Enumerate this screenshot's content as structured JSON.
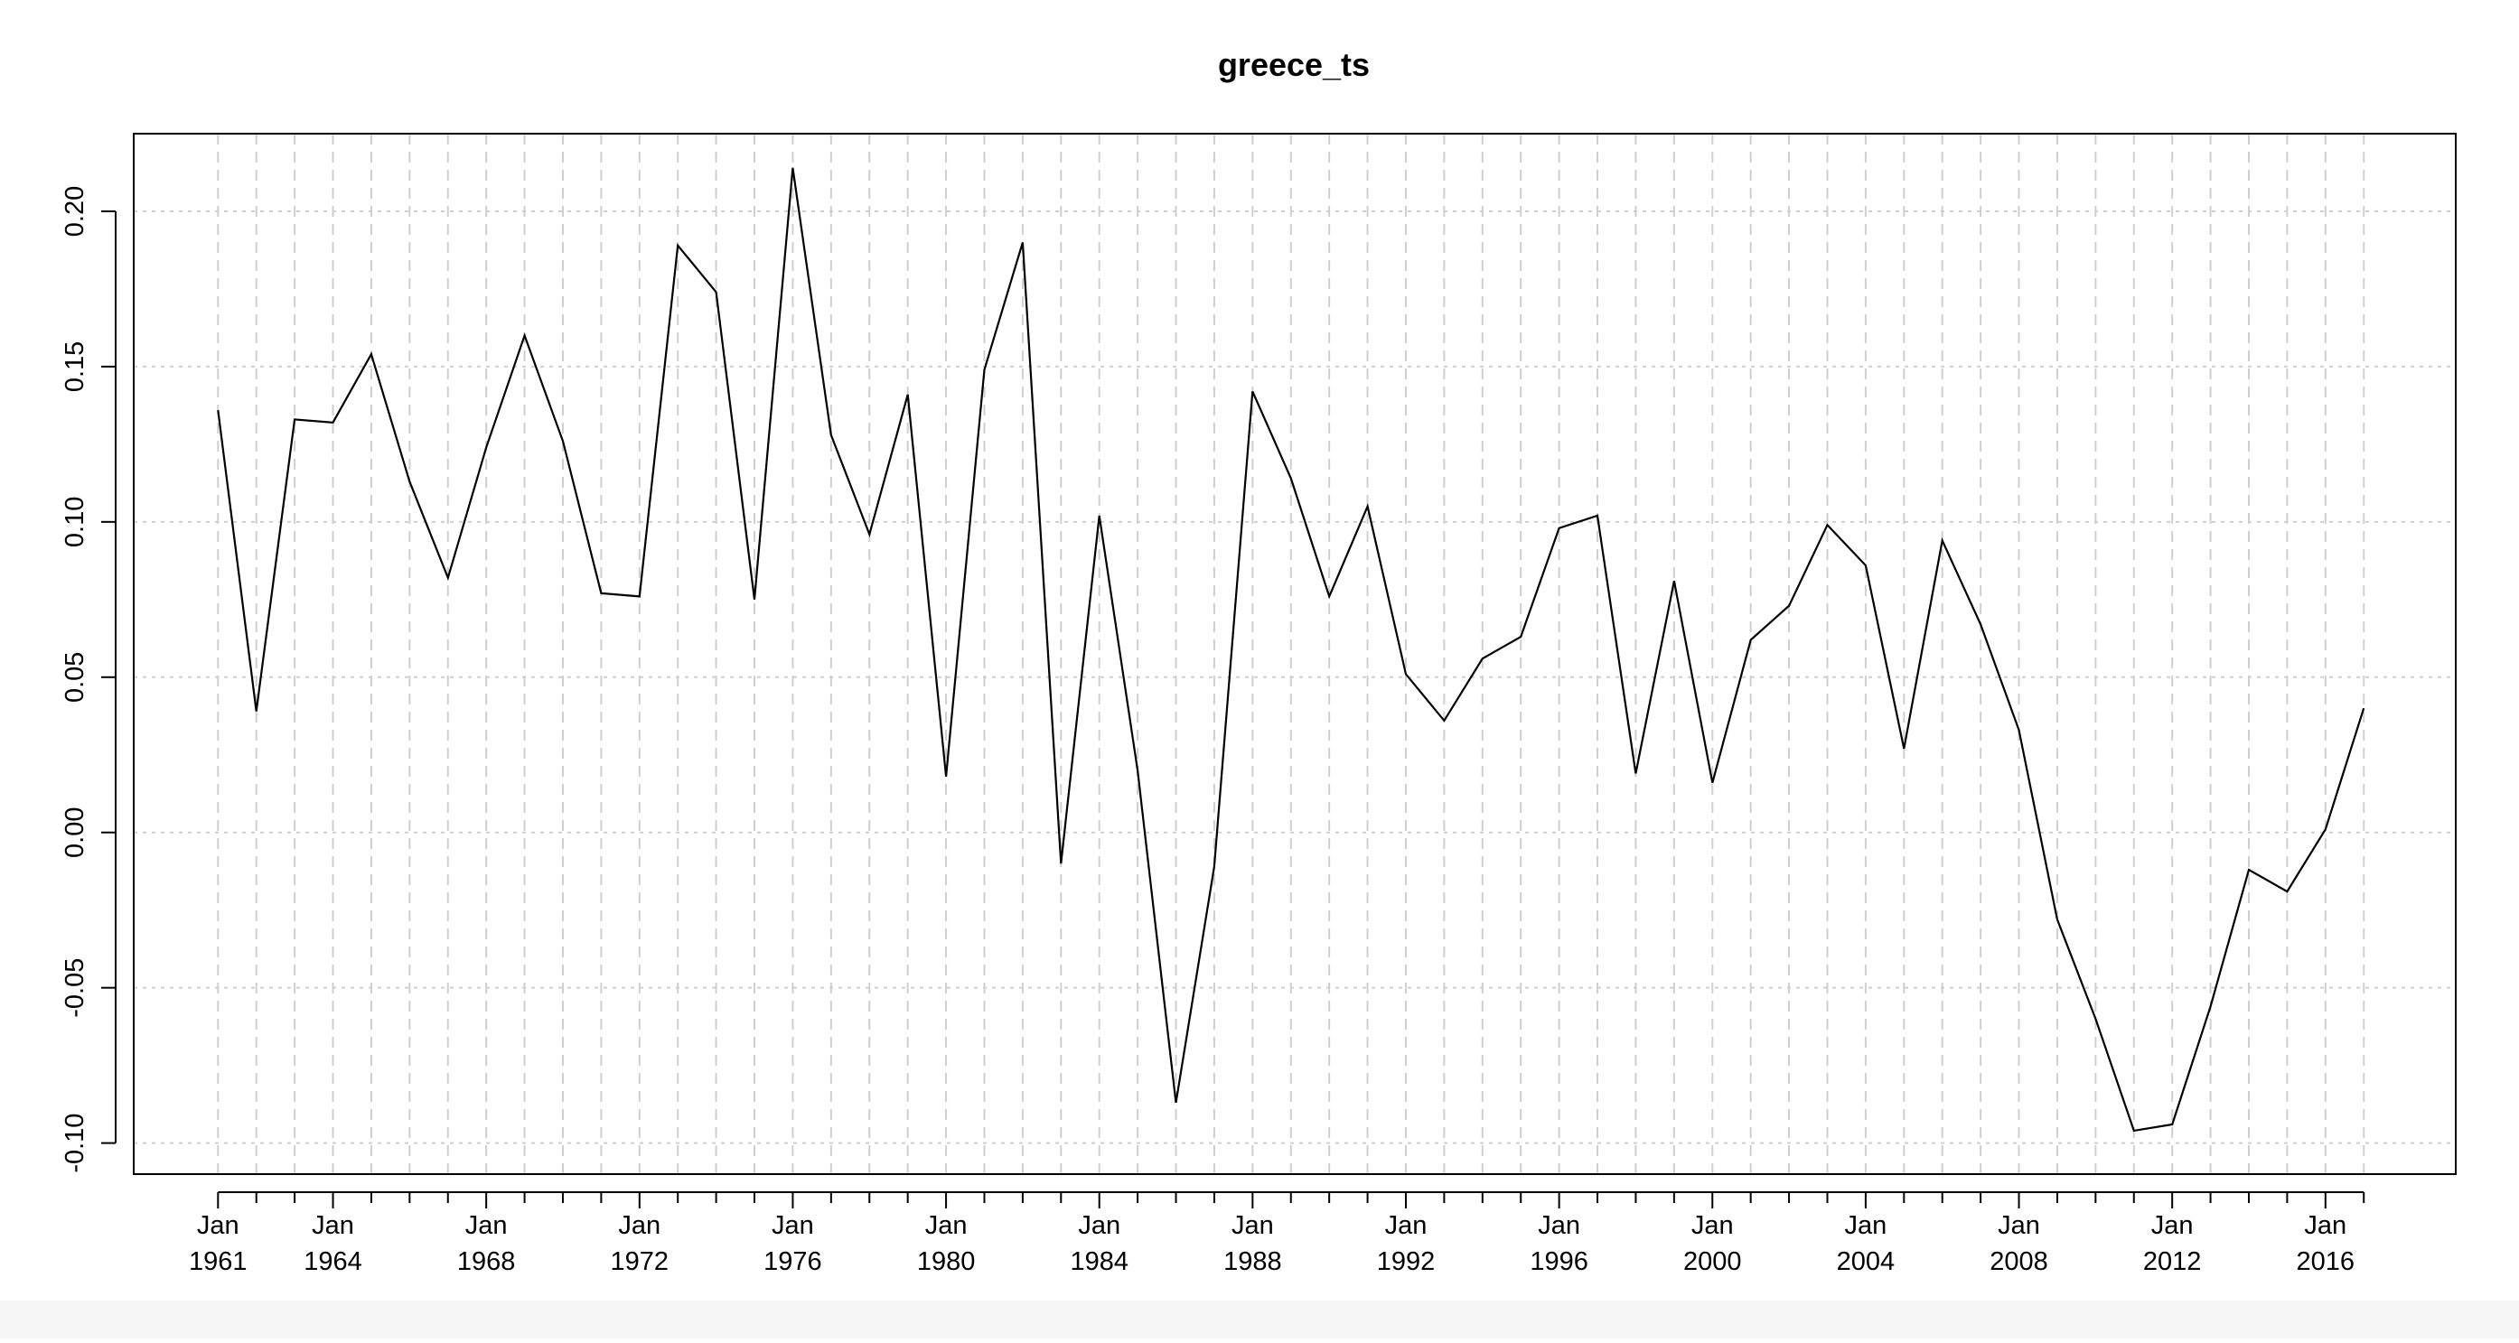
{
  "chart_data": {
    "type": "line",
    "title": "greece_ts",
    "xlabel": "",
    "ylabel": "",
    "xlim": [
      1958.8,
      2019.4
    ],
    "ylim": [
      -0.11,
      0.225
    ],
    "grid": true,
    "x_ticks": [
      {
        "year": 1961,
        "month": "Jan",
        "label_year": "1961"
      },
      {
        "year": 1964,
        "month": "Jan",
        "label_year": "1964"
      },
      {
        "year": 1968,
        "month": "Jan",
        "label_year": "1968"
      },
      {
        "year": 1972,
        "month": "Jan",
        "label_year": "1972"
      },
      {
        "year": 1976,
        "month": "Jan",
        "label_year": "1976"
      },
      {
        "year": 1980,
        "month": "Jan",
        "label_year": "1980"
      },
      {
        "year": 1984,
        "month": "Jan",
        "label_year": "1984"
      },
      {
        "year": 1988,
        "month": "Jan",
        "label_year": "1988"
      },
      {
        "year": 1992,
        "month": "Jan",
        "label_year": "1992"
      },
      {
        "year": 1996,
        "month": "Jan",
        "label_year": "1996"
      },
      {
        "year": 2000,
        "month": "Jan",
        "label_year": "2000"
      },
      {
        "year": 2004,
        "month": "Jan",
        "label_year": "2004"
      },
      {
        "year": 2008,
        "month": "Jan",
        "label_year": "2008"
      },
      {
        "year": 2012,
        "month": "Jan",
        "label_year": "2012"
      },
      {
        "year": 2016,
        "month": "Jan",
        "label_year": "2016"
      }
    ],
    "y_ticks": [
      {
        "value": -0.1,
        "label": "-0.10"
      },
      {
        "value": -0.05,
        "label": "-0.05"
      },
      {
        "value": 0.0,
        "label": "0.00"
      },
      {
        "value": 0.05,
        "label": "0.05"
      },
      {
        "value": 0.1,
        "label": "0.10"
      },
      {
        "value": 0.15,
        "label": "0.15"
      },
      {
        "value": 0.2,
        "label": "0.20"
      }
    ],
    "series": [
      {
        "color": "#000000",
        "x": [
          1961,
          1962,
          1963,
          1964,
          1965,
          1966,
          1967,
          1968,
          1969,
          1970,
          1971,
          1972,
          1973,
          1974,
          1975,
          1976,
          1977,
          1978,
          1979,
          1980,
          1981,
          1982,
          1983,
          1984,
          1985,
          1986,
          1987,
          1988,
          1989,
          1990,
          1991,
          1992,
          1993,
          1994,
          1995,
          1996,
          1997,
          1998,
          1999,
          2000,
          2001,
          2002,
          2003,
          2004,
          2005,
          2006,
          2007,
          2008,
          2009,
          2010,
          2011,
          2012,
          2013,
          2014,
          2015,
          2016,
          2017
        ],
        "values": [
          0.136,
          0.039,
          0.133,
          0.132,
          0.154,
          0.113,
          0.082,
          0.124,
          0.16,
          0.126,
          0.077,
          0.076,
          0.189,
          0.174,
          0.075,
          0.214,
          0.128,
          0.096,
          0.141,
          0.018,
          0.149,
          0.19,
          -0.01,
          0.102,
          0.02,
          -0.087,
          -0.011,
          0.142,
          0.114,
          0.076,
          0.105,
          0.051,
          0.036,
          0.056,
          0.063,
          0.098,
          0.102,
          0.019,
          0.081,
          0.016,
          0.062,
          0.073,
          0.099,
          0.086,
          0.027,
          0.094,
          0.067,
          0.033,
          -0.028,
          -0.06,
          -0.096,
          -0.094,
          -0.056,
          -0.012,
          -0.019,
          0.001,
          0.04
        ]
      }
    ]
  }
}
